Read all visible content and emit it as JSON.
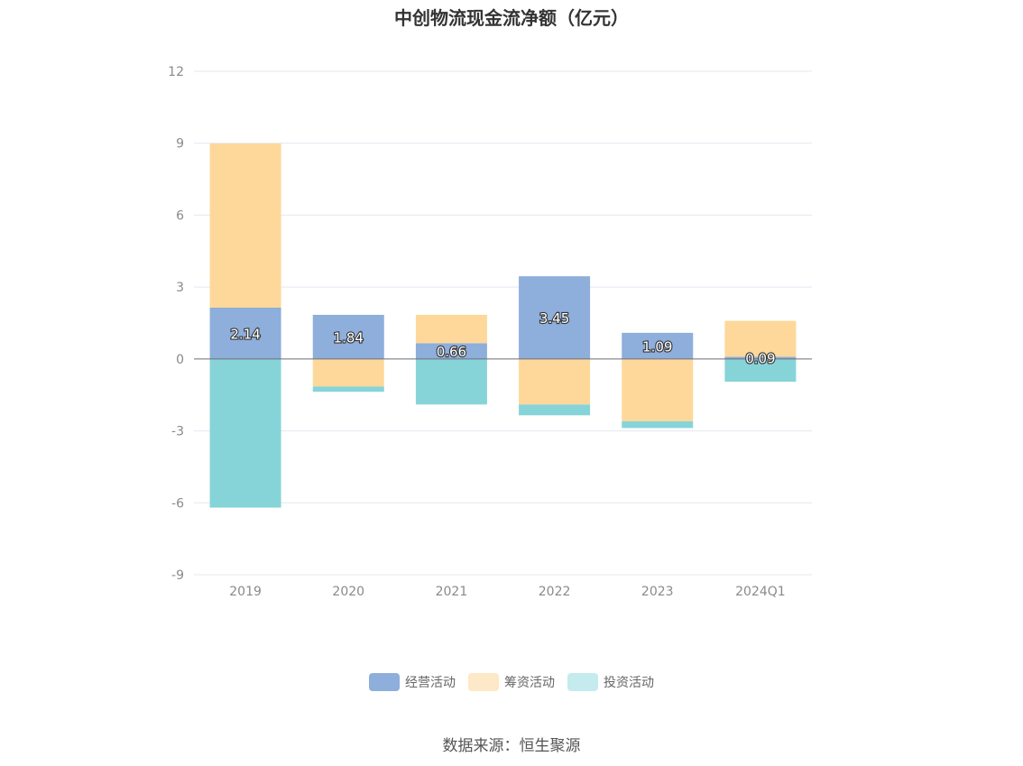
{
  "chart_data": {
    "type": "bar",
    "stacked": true,
    "title": "中创物流现金流净额（亿元）",
    "categories": [
      "2019",
      "2020",
      "2021",
      "2022",
      "2023",
      "2024Q1"
    ],
    "ylim": [
      -9,
      12
    ],
    "yticks": [
      12,
      9,
      6,
      3,
      0,
      -3,
      -6,
      -9
    ],
    "grid": true,
    "legend_position": "bottom",
    "series": [
      {
        "name": "经营活动",
        "color": "#8eaedb",
        "values": [
          2.14,
          1.84,
          0.66,
          3.45,
          1.09,
          0.09
        ]
      },
      {
        "name": "筹资活动",
        "color": "#fed89a",
        "values": [
          6.85,
          -1.15,
          1.18,
          -1.9,
          -2.6,
          1.5
        ]
      },
      {
        "name": "投资活动",
        "color": "#87d4d8",
        "values": [
          -6.2,
          -0.22,
          -1.9,
          -0.45,
          -0.28,
          -0.95
        ]
      }
    ],
    "data_labels": [
      "2.14",
      "1.84",
      "0.66",
      "3.45",
      "1.09",
      "0.09"
    ],
    "legend_colors": [
      "#8eaedb",
      "#fde8c7",
      "#c5ebee"
    ]
  },
  "source": "数据来源：恒生聚源"
}
